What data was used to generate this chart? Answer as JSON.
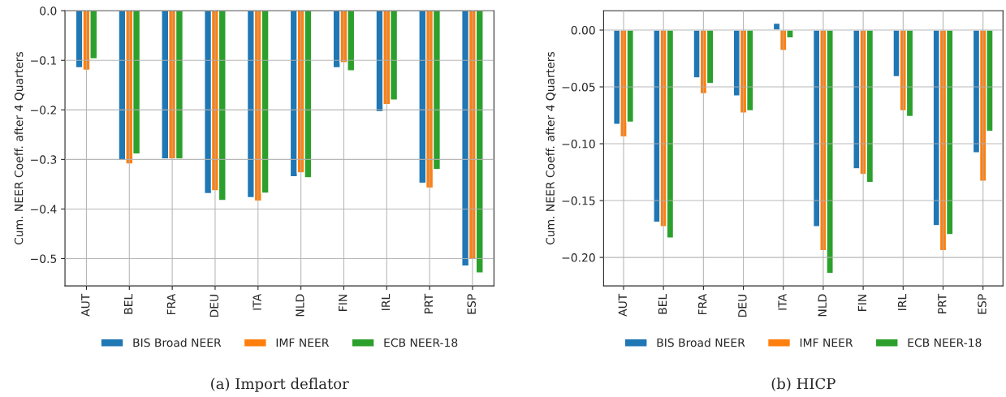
{
  "chart_data": [
    {
      "type": "bar",
      "title": "(a) Import deflator",
      "ylabel": "Cum. NEER Coeff. after 4 Quarters",
      "categories": [
        "AUT",
        "BEL",
        "FRA",
        "DEU",
        "ITA",
        "NLD",
        "FIN",
        "IRL",
        "PRT",
        "ESP"
      ],
      "series": [
        {
          "name": "BIS Broad NEER",
          "color": "#1f77b4",
          "values": [
            -0.115,
            -0.302,
            -0.299,
            -0.369,
            -0.377,
            -0.335,
            -0.115,
            -0.204,
            -0.348,
            -0.515
          ]
        },
        {
          "name": "IMF NEER",
          "color": "#ff7f0e",
          "values": [
            -0.12,
            -0.309,
            -0.299,
            -0.363,
            -0.384,
            -0.327,
            -0.105,
            -0.189,
            -0.358,
            -0.502
          ]
        },
        {
          "name": "ECB NEER-18",
          "color": "#2ca02c",
          "values": [
            -0.097,
            -0.289,
            -0.299,
            -0.383,
            -0.368,
            -0.337,
            -0.121,
            -0.18,
            -0.32,
            -0.529
          ]
        }
      ],
      "ylim": [
        -0.555,
        0.0
      ],
      "yticks": [
        {
          "value": -0.5,
          "label": "−0.5"
        },
        {
          "value": -0.4,
          "label": "−0.4"
        },
        {
          "value": -0.3,
          "label": "−0.3"
        },
        {
          "value": -0.2,
          "label": "−0.2"
        },
        {
          "value": -0.1,
          "label": "−0.1"
        },
        {
          "value": 0.0,
          "label": "0.0"
        }
      ],
      "grid": true,
      "legend": "bottom"
    },
    {
      "type": "bar",
      "title": "(b) HICP",
      "ylabel": "Cum. NEER Coeff. after 4 Quarters",
      "categories": [
        "AUT",
        "BEL",
        "FRA",
        "DEU",
        "ITA",
        "NLD",
        "FIN",
        "IRL",
        "PRT",
        "ESP"
      ],
      "series": [
        {
          "name": "BIS Broad NEER",
          "color": "#1f77b4",
          "values": [
            -0.083,
            -0.169,
            -0.042,
            -0.058,
            0.006,
            -0.173,
            -0.122,
            -0.041,
            -0.172,
            -0.108
          ]
        },
        {
          "name": "IMF NEER",
          "color": "#ff7f0e",
          "values": [
            -0.094,
            -0.173,
            -0.056,
            -0.073,
            -0.018,
            -0.194,
            -0.127,
            -0.071,
            -0.194,
            -0.133
          ]
        },
        {
          "name": "ECB NEER-18",
          "color": "#2ca02c",
          "values": [
            -0.081,
            -0.183,
            -0.047,
            -0.071,
            -0.007,
            -0.214,
            -0.134,
            -0.076,
            -0.18,
            -0.089
          ]
        }
      ],
      "ylim": [
        -0.225,
        0.017
      ],
      "yticks": [
        {
          "value": -0.2,
          "label": "−0.20"
        },
        {
          "value": -0.15,
          "label": "−0.15"
        },
        {
          "value": -0.1,
          "label": "−0.10"
        },
        {
          "value": -0.05,
          "label": "−0.05"
        },
        {
          "value": 0.0,
          "label": "0.00"
        }
      ],
      "grid": true,
      "legend": "bottom"
    }
  ]
}
